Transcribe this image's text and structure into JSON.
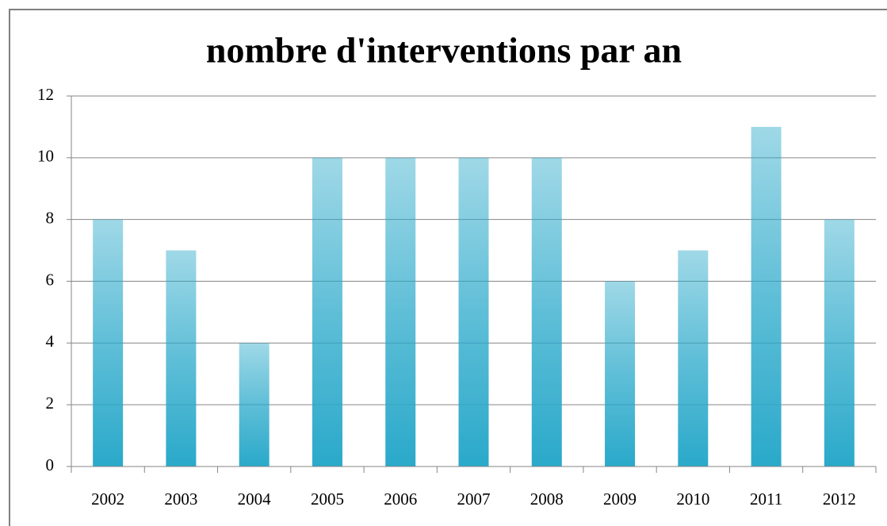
{
  "chart_data": {
    "type": "bar",
    "title": "nombre d'interventions par an",
    "categories": [
      "2002",
      "2003",
      "2004",
      "2005",
      "2006",
      "2007",
      "2008",
      "2009",
      "2010",
      "2011",
      "2012"
    ],
    "values": [
      8,
      7,
      4,
      10,
      10,
      10,
      10,
      6,
      7,
      11,
      8
    ],
    "color": "#2aa9ca",
    "ylim": [
      0,
      12
    ],
    "yticks": [
      0,
      2,
      4,
      6,
      8,
      10,
      12
    ],
    "grid": true
  }
}
